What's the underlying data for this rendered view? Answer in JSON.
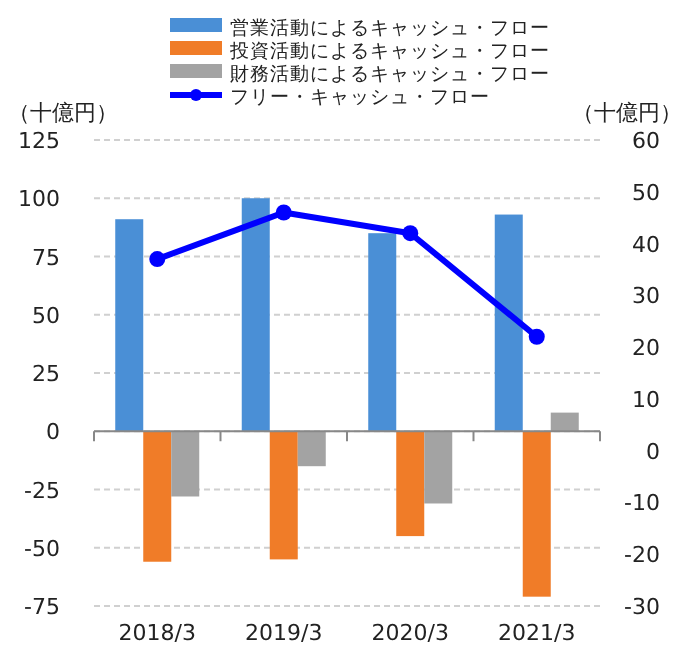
{
  "chart_data": {
    "type": "bar",
    "ylabel": "（十億円）",
    "y2label": "（十億円）",
    "categories": [
      "2018/3",
      "2019/3",
      "2020/3",
      "2021/3"
    ],
    "series": [
      {
        "name": "営業活動によるキャッシュ・フロー",
        "color": "#4a8fd6",
        "values": [
          91,
          100,
          85,
          93
        ]
      },
      {
        "name": "投資活動によるキャッシュ・フロー",
        "color": "#f07c28",
        "values": [
          -56,
          -55,
          -45,
          -71
        ]
      },
      {
        "name": "財務活動によるキャッシュ・フロー",
        "color": "#a3a3a3",
        "values": [
          -28,
          -15,
          -31,
          8
        ]
      },
      {
        "name": "フリー・キャッシュ・フロー",
        "color": "#0000ff",
        "type": "line",
        "axis": "y2",
        "marker": "circle",
        "values": [
          37,
          46,
          42,
          22
        ]
      }
    ],
    "ylim": [
      -75,
      125
    ],
    "yticks": [
      -75,
      -50,
      -25,
      0,
      25,
      50,
      75,
      100,
      125
    ],
    "y2lim": [
      -30,
      60
    ],
    "y2ticks": [
      -30,
      -20,
      -10,
      0,
      10,
      20,
      30,
      40,
      50,
      60
    ],
    "grid": "y",
    "legend": "top"
  }
}
